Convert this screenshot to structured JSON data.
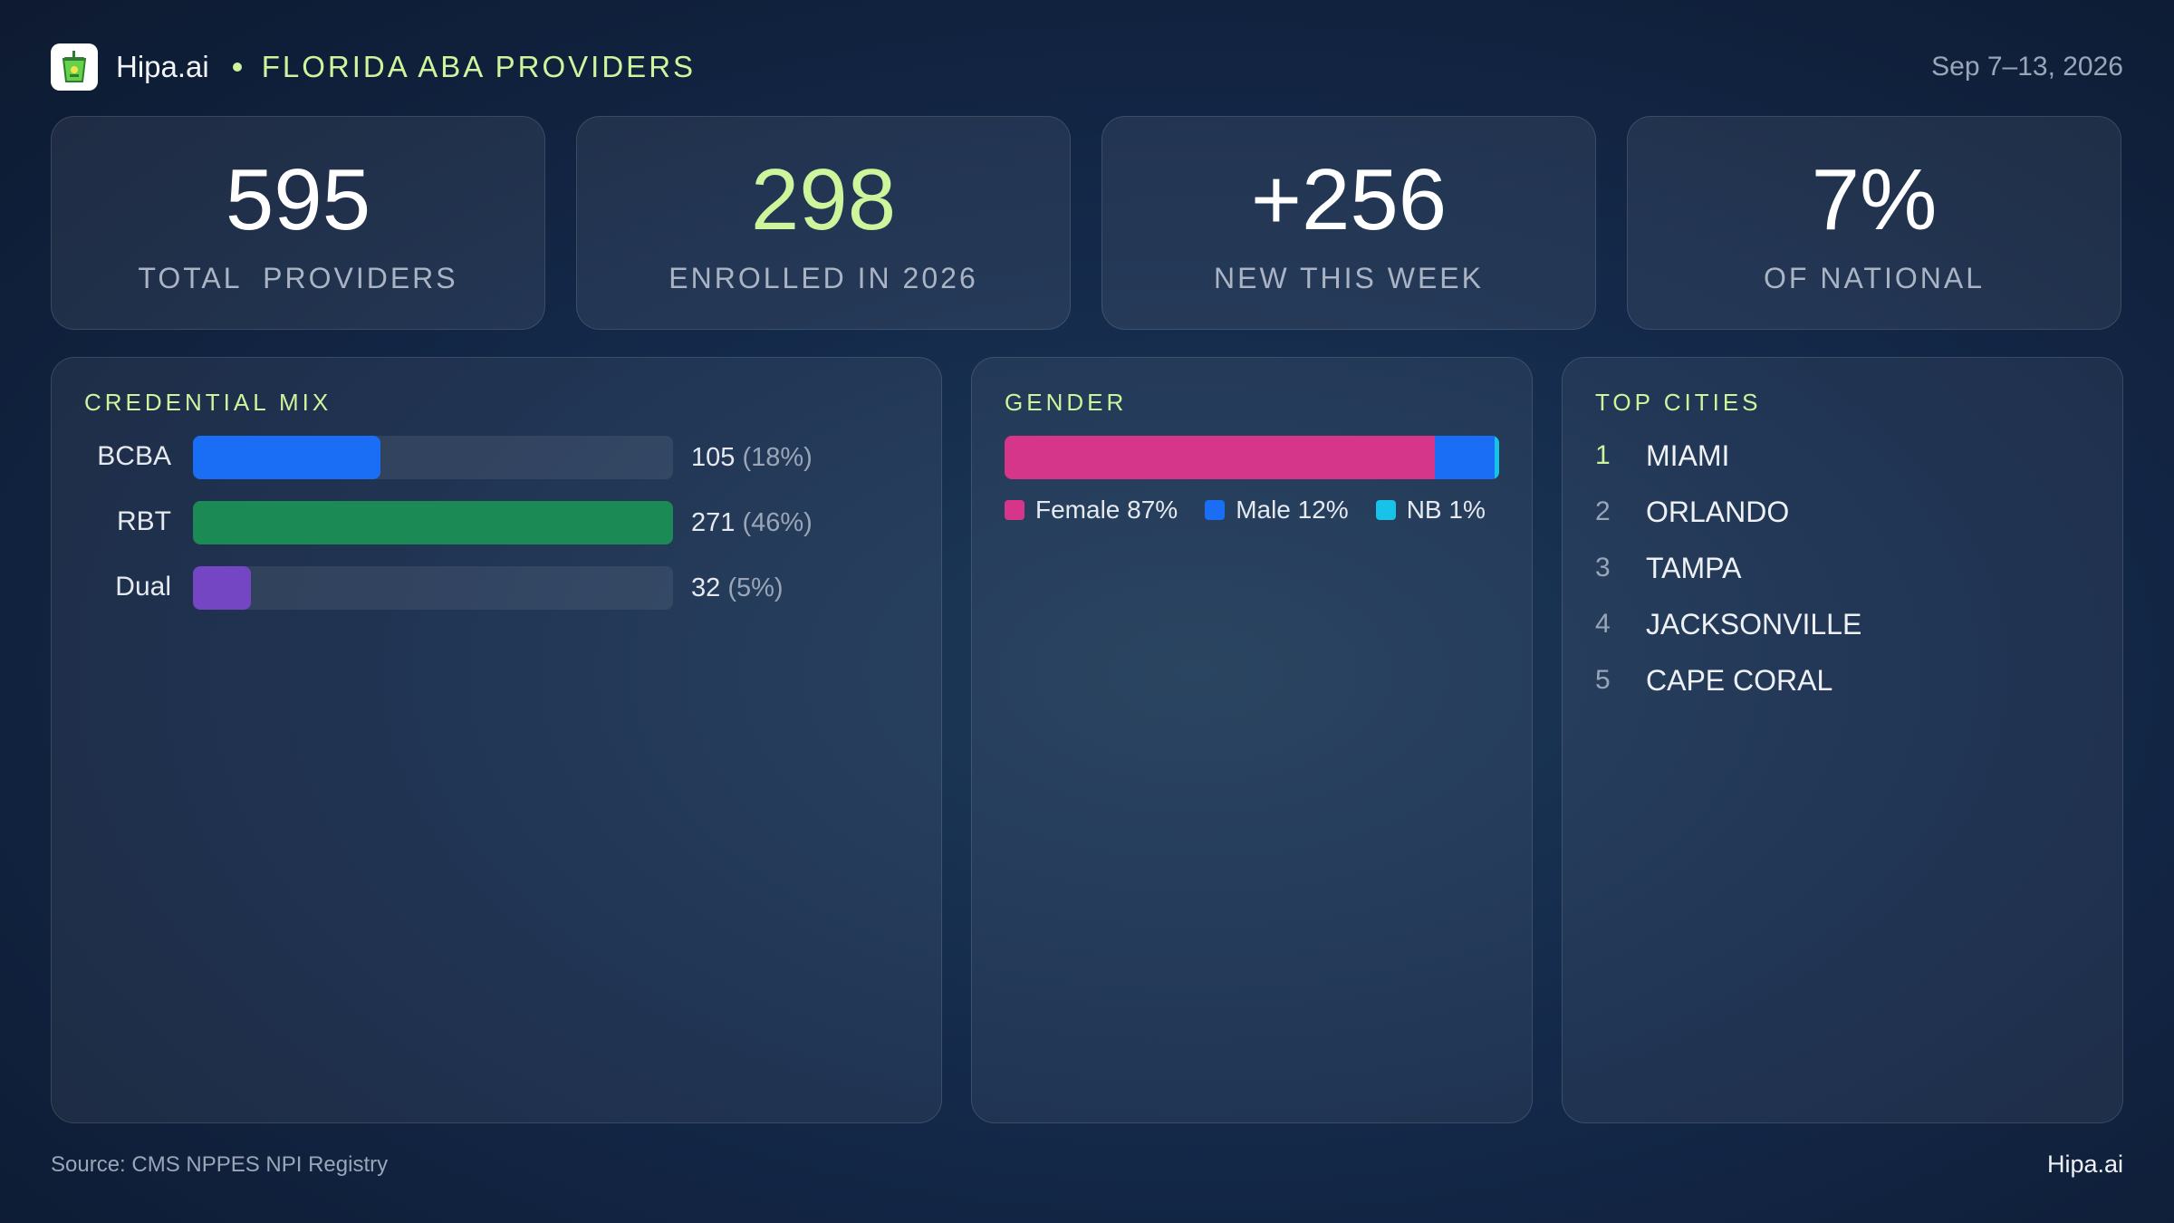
{
  "header": {
    "brand": "Hipa.ai",
    "title": "FLORIDA ABA PROVIDERS",
    "date_range": "Sep 7–13, 2026",
    "logo_icon": "drink-cup-icon",
    "accent_color": "#cdf59c"
  },
  "kpis": [
    {
      "value": "595",
      "label": "TOTAL  PROVIDERS"
    },
    {
      "value": "298",
      "label": "ENROLLED IN 2026"
    },
    {
      "value": "+256",
      "label": "NEW THIS WEEK"
    },
    {
      "value": "7%",
      "label": "OF NATIONAL"
    }
  ],
  "credential_mix": {
    "title": "CREDENTIAL MIX",
    "items": [
      {
        "label": "BCBA",
        "count": "105",
        "pct": "(18%)",
        "share": 0.39,
        "color": "#1a6ef5"
      },
      {
        "label": "RBT",
        "count": "271",
        "pct": "(46%)",
        "share": 1.0,
        "color": "#1c8a55"
      },
      {
        "label": "Dual",
        "count": "32",
        "pct": "(5%)",
        "share": 0.12,
        "color": "#7546c4"
      }
    ]
  },
  "gender": {
    "title": "GENDER",
    "segments": [
      {
        "name": "Female 87%",
        "value": 87,
        "color": "#d6368a"
      },
      {
        "name": "Male 12%",
        "value": 12,
        "color": "#1a6ef5"
      },
      {
        "name": "NB 1%",
        "value": 1,
        "color": "#17c3e8"
      }
    ]
  },
  "top_cities": {
    "title": "TOP CITIES",
    "items": [
      {
        "rank": "1",
        "name": "MIAMI"
      },
      {
        "rank": "2",
        "name": "ORLANDO"
      },
      {
        "rank": "3",
        "name": "TAMPA"
      },
      {
        "rank": "4",
        "name": "JACKSONVILLE"
      },
      {
        "rank": "5",
        "name": "CAPE CORAL"
      }
    ]
  },
  "footer": {
    "source": "Source: CMS NPPES NPI Registry",
    "brand": "Hipa.ai"
  }
}
